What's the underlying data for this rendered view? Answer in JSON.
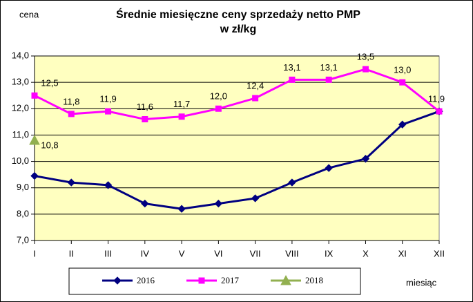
{
  "chart_data": {
    "type": "line",
    "title": "Średnie miesięczne ceny sprzedaży netto PMP",
    "subtitle": "w zł/kg",
    "y_label": "cena",
    "x_label": "miesiąc",
    "categories": [
      "I",
      "II",
      "III",
      "IV",
      "V",
      "VI",
      "VII",
      "VIII",
      "IX",
      "X",
      "XI",
      "XII"
    ],
    "series": [
      {
        "name": "2016",
        "color": "#000080",
        "marker": "diamond",
        "values": [
          9.45,
          9.2,
          9.1,
          8.4,
          8.2,
          8.4,
          8.6,
          9.2,
          9.75,
          10.1,
          11.4,
          11.9
        ]
      },
      {
        "name": "2017",
        "color": "#ff00ff",
        "marker": "square",
        "values": [
          12.5,
          11.8,
          11.9,
          11.6,
          11.7,
          12.0,
          12.4,
          13.1,
          13.1,
          13.5,
          13.0,
          11.9
        ],
        "value_labels": [
          "12,5",
          "11,8",
          "11,9",
          "11,6",
          "11,7",
          "12,0",
          "12,4",
          "13,1",
          "13,1",
          "13,5",
          "13,0",
          "11,9"
        ]
      },
      {
        "name": "2018",
        "color": "#92b050",
        "marker": "triangle",
        "values": [
          10.8,
          null,
          null,
          null,
          null,
          null,
          null,
          null,
          null,
          null,
          null,
          null
        ],
        "value_labels": [
          "10,8",
          null,
          null,
          null,
          null,
          null,
          null,
          null,
          null,
          null,
          null,
          null
        ]
      }
    ],
    "ylim": [
      7,
      14
    ],
    "yticks": [
      {
        "value": 7,
        "label": "7,0"
      },
      {
        "value": 8,
        "label": "8,0"
      },
      {
        "value": 9,
        "label": "9,0"
      },
      {
        "value": 10,
        "label": "10,0"
      },
      {
        "value": 11,
        "label": "11,0"
      },
      {
        "value": 12,
        "label": "12,0"
      },
      {
        "value": 13,
        "label": "13,0"
      },
      {
        "value": 14,
        "label": "14,0"
      }
    ],
    "grid": true,
    "legend": "bottom"
  }
}
